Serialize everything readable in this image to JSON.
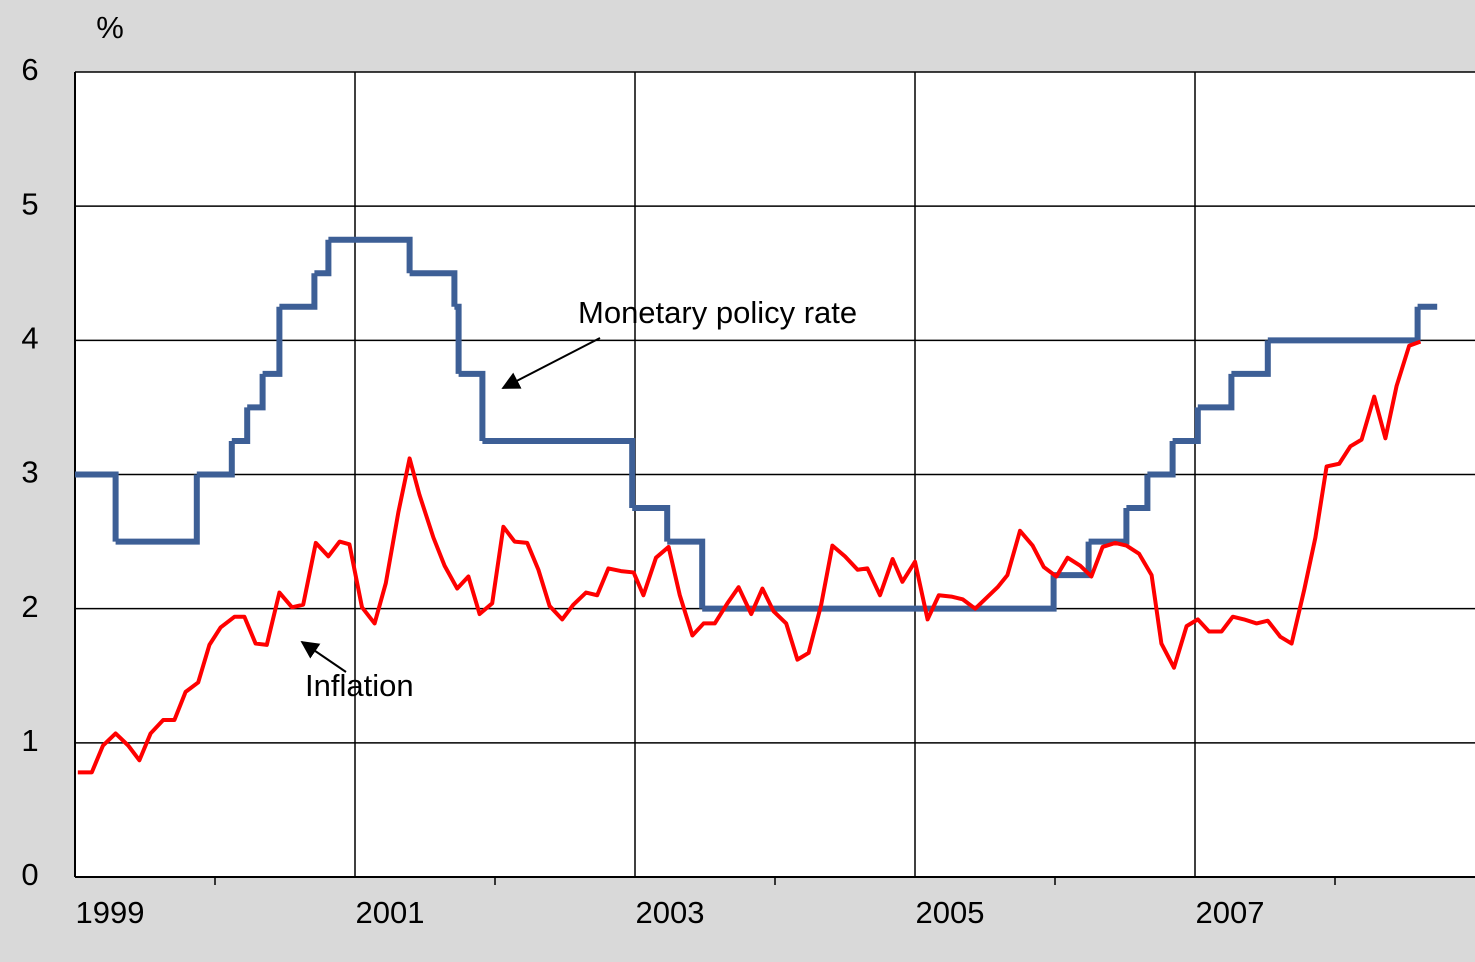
{
  "chart_data": {
    "type": "line",
    "ylabel": "%",
    "xlim": [
      1999,
      2009
    ],
    "ylim": [
      0,
      6
    ],
    "yticks": [
      0,
      1,
      2,
      3,
      4,
      5,
      6
    ],
    "xticks": [
      1999,
      2001,
      2003,
      2005,
      2007
    ],
    "xminorticks": [
      2000,
      2002,
      2004,
      2006,
      2008
    ],
    "grid": true,
    "series": [
      {
        "name": "Monetary policy rate",
        "color": "#3d5f96",
        "step": "post",
        "x": [
          1999.0,
          1999.29,
          1999.87,
          2000.12,
          2000.23,
          2000.34,
          2000.46,
          2000.71,
          2000.81,
          2001.39,
          2001.71,
          2001.74,
          2001.91,
          2002.98,
          2003.23,
          2003.48,
          2005.99,
          2006.24,
          2006.51,
          2006.66,
          2006.84,
          2007.02,
          2007.26,
          2007.52,
          2008.59,
          2008.73
        ],
        "values": [
          3.0,
          2.5,
          3.0,
          3.25,
          3.5,
          3.75,
          4.25,
          4.5,
          4.75,
          4.5,
          4.25,
          3.75,
          3.25,
          2.75,
          2.5,
          2.0,
          2.25,
          2.5,
          2.75,
          3.0,
          3.25,
          3.5,
          3.75,
          4.0,
          4.25,
          4.25
        ]
      },
      {
        "name": "Inflation",
        "color": "#ff0000",
        "x": [
          1999.02,
          1999.12,
          1999.2,
          1999.29,
          1999.38,
          1999.46,
          1999.54,
          1999.63,
          1999.71,
          1999.79,
          1999.88,
          1999.96,
          2000.04,
          2000.14,
          2000.21,
          2000.29,
          2000.37,
          2000.46,
          2000.55,
          2000.63,
          2000.72,
          2000.81,
          2000.89,
          2000.96,
          2001.05,
          2001.14,
          2001.22,
          2001.31,
          2001.39,
          2001.46,
          2001.56,
          2001.64,
          2001.73,
          2001.81,
          2001.89,
          2001.98,
          2002.06,
          2002.14,
          2002.23,
          2002.31,
          2002.39,
          2002.48,
          2002.56,
          2002.65,
          2002.73,
          2002.81,
          2002.9,
          2002.99,
          2003.06,
          2003.15,
          2003.24,
          2003.32,
          2003.41,
          2003.49,
          2003.57,
          2003.66,
          2003.74,
          2003.83,
          2003.91,
          2003.99,
          2004.08,
          2004.16,
          2004.24,
          2004.33,
          2004.41,
          2004.5,
          2004.59,
          2004.66,
          2004.75,
          2004.84,
          2004.91,
          2005.0,
          2005.09,
          2005.17,
          2005.26,
          2005.34,
          2005.43,
          2005.51,
          2005.59,
          2005.66,
          2005.75,
          2005.84,
          2005.92,
          2006.01,
          2006.09,
          2006.18,
          2006.26,
          2006.34,
          2006.43,
          2006.51,
          2006.6,
          2006.69,
          2006.76,
          2006.85,
          2006.94,
          2007.02,
          2007.1,
          2007.19,
          2007.27,
          2007.35,
          2007.44,
          2007.52,
          2007.61,
          2007.69,
          2007.78,
          2007.86,
          2007.94,
          2008.03,
          2008.11,
          2008.19,
          2008.28,
          2008.36,
          2008.44,
          2008.53,
          2008.61
        ],
        "values": [
          0.78,
          0.78,
          0.98,
          1.07,
          0.98,
          0.87,
          1.07,
          1.17,
          1.17,
          1.38,
          1.45,
          1.73,
          1.86,
          1.94,
          1.94,
          1.74,
          1.73,
          2.12,
          2.01,
          2.03,
          2.49,
          2.39,
          2.5,
          2.48,
          2.01,
          1.89,
          2.19,
          2.72,
          3.12,
          2.85,
          2.53,
          2.32,
          2.15,
          2.24,
          1.96,
          2.04,
          2.61,
          2.5,
          2.49,
          2.29,
          2.02,
          1.92,
          2.03,
          2.12,
          2.1,
          2.3,
          2.28,
          2.27,
          2.1,
          2.38,
          2.46,
          2.1,
          1.8,
          1.89,
          1.89,
          2.04,
          2.16,
          1.96,
          2.15,
          1.98,
          1.89,
          1.62,
          1.67,
          2.03,
          2.47,
          2.39,
          2.29,
          2.3,
          2.1,
          2.37,
          2.2,
          2.35,
          1.92,
          2.1,
          2.09,
          2.07,
          2.0,
          2.08,
          2.16,
          2.25,
          2.58,
          2.47,
          2.31,
          2.24,
          2.38,
          2.32,
          2.24,
          2.46,
          2.49,
          2.47,
          2.41,
          2.25,
          1.74,
          1.56,
          1.87,
          1.92,
          1.83,
          1.83,
          1.94,
          1.92,
          1.89,
          1.91,
          1.79,
          1.74,
          2.14,
          2.53,
          3.06,
          3.08,
          3.21,
          3.26,
          3.58,
          3.27,
          3.66,
          3.96,
          3.99
        ]
      }
    ]
  }
}
